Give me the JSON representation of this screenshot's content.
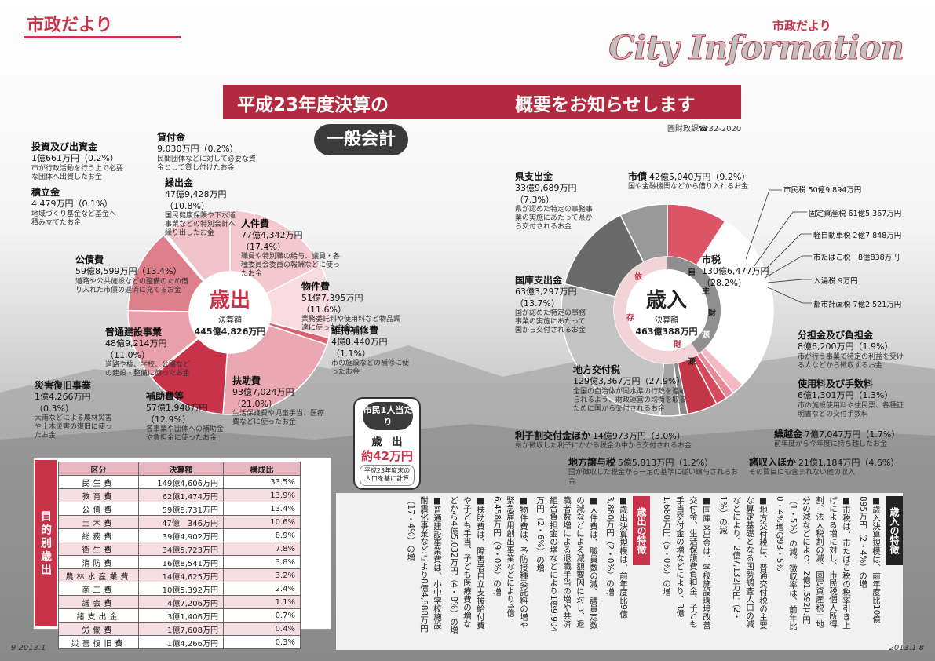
{
  "header": {
    "left_title": "市政だより",
    "right_sub": "市政だより",
    "right_brand": "City Information"
  },
  "title": {
    "part1": "平成23年度決算の",
    "part2": "概要をお知らせします"
  },
  "section": "一般会計",
  "dept": "圓財政課☎32-2020",
  "expenditure": {
    "center_big": "歳出",
    "center_sub": "決算額",
    "center_total": "445億4,826万円",
    "items": [
      {
        "name": "人件費",
        "value": "77億4,342万円（17.4%）",
        "desc": "職員や特別職の給与、議員・各種委員会委員の報酬などに使ったお金"
      },
      {
        "name": "物件費",
        "value": "51億7,395万円（11.6%）",
        "desc": "業務委託料や使用料など物品調達に使ったお金"
      },
      {
        "name": "維持補修費",
        "value": "4億8,440万円",
        "pct": "（1.1%）",
        "desc": "市の施設などの補修に使ったお金"
      },
      {
        "name": "扶助費",
        "value": "93億7,024万円",
        "pct": "（21.0%）",
        "desc": "生活保護費や児童手当、医療費などに使ったお金"
      },
      {
        "name": "補助費等",
        "value": "57億1,948万円",
        "pct": "（12.9%）",
        "desc": "各事業や団体への補助金や負担金に使ったお金"
      },
      {
        "name": "災害復旧事業",
        "value": "1億4,266万円",
        "pct": "（0.3%）",
        "desc": "大雨などによる農林災害や土木災害の復旧に使ったお金"
      },
      {
        "name": "普通建設事業",
        "value": "48億9,214万円",
        "pct": "（11.0%）",
        "desc": "道路や橋、学校、公園などの建設・整備に使ったお金"
      },
      {
        "name": "公債費",
        "value": "59億8,599万円（13.4%）",
        "desc": "道路や公共施設などの整備のため借り入れた市債の返済に充てるお金"
      },
      {
        "name": "積立金",
        "value": "4,479万円（0.1%）",
        "desc": "地域づくり基金など基金へ積み立てたお金"
      },
      {
        "name": "投資及び出資金",
        "value": "1億661万円（0.2%）",
        "desc": "市が行政活動を行う上で必要な団体へ出資したお金"
      },
      {
        "name": "貸付金",
        "value": "9,030万円（0.2%）",
        "desc": "民間団体などに対して必要な資金として貸し付けたお金"
      },
      {
        "name": "繰出金",
        "value": "47億9,428万円（10.8%）",
        "desc": "国民健康保険や下水道事業などの特別会計へ繰り出したお金"
      }
    ]
  },
  "revenue": {
    "center_big": "歳入",
    "center_sub": "決算額",
    "center_total": "463億388万円",
    "ring": {
      "jishu": [
        "自",
        "主",
        "財",
        "源"
      ],
      "izon": [
        "依",
        "存",
        "財",
        "源"
      ]
    },
    "items": [
      {
        "name": "市債",
        "value": "42億5,040万円（9.2%）",
        "desc": "国や金融機関などから借り入れるお金"
      },
      {
        "name": "県支出金",
        "value": "33億9,689万円（7.3%）",
        "desc": "県が認めた特定の事務事業の実施にあたって県から交付されるお金"
      },
      {
        "name": "国庫支出金",
        "value": "63億3,297万円",
        "pct": "（13.7%）",
        "desc": "国が認めた特定の事務事業の実施にあたって国から交付されるお金"
      },
      {
        "name": "市税",
        "value": "130億6,477万円",
        "pct": "（28.2%）"
      },
      {
        "name": "地方交付税",
        "value": "129億3,367万円（27.9%）",
        "desc": "全国の自治体が同水準の行政を進められるよう、財政運営の均衡を取るために国から交付されるお金"
      },
      {
        "name": "分担金及び負担金",
        "value": "8億6,200万円（1.9%）",
        "desc": "市が行う事業で特定の利益を受ける人などから徴収するお金"
      },
      {
        "name": "使用料及び手数料",
        "value": "6億1,301万円（1.3%）",
        "desc": "市の施設使用料や住民票、各種証明書などの交付手数料"
      },
      {
        "name": "繰越金",
        "value": "7億7,047万円（1.7%）",
        "desc": "前年度から今年度に持ち越したお金"
      },
      {
        "name": "諸収入ほか",
        "value": "21億1,184万円（4.6%）",
        "desc": "その費目にも含まれない他の収入"
      },
      {
        "name": "地方譲与税",
        "value": "5億5,813万円（1.2%）",
        "desc": "国が徴収した税金から一定の基準に従い譲与されるお金"
      },
      {
        "name": "利子割交付金ほか",
        "value": "14億973万円（3.0%）",
        "desc": "県が徴収した利子にかかる税金の中から交付されるお金"
      }
    ],
    "tax_breakdown": [
      "市民税 50億9,894万円",
      "固定資産税 61億5,367万円",
      "軽自動車税 2億7,848万円",
      "市たばこ税　8億838万円",
      "入湯税 9万円",
      "都市計画税 7億2,521万円"
    ]
  },
  "per_capita": {
    "header": "市民1人当たり",
    "label": "歳　出",
    "value": "約42万円",
    "note": "平成23年度末の人口を基に計算"
  },
  "table": {
    "sidebar": "目的別歳出",
    "headers": [
      "区分",
      "決算額",
      "構成比"
    ],
    "rows": [
      [
        "民生費",
        "149億4,606万円",
        "33.5%"
      ],
      [
        "教育費",
        "62億1,474万円",
        "13.9%"
      ],
      [
        "公債費",
        "59億8,731万円",
        "13.4%"
      ],
      [
        "土木費",
        "47億　346万円",
        "10.6%"
      ],
      [
        "総務費",
        "39億4,902万円",
        "8.9%"
      ],
      [
        "衛生費",
        "34億5,723万円",
        "7.8%"
      ],
      [
        "消防費",
        "16億8,541万円",
        "3.8%"
      ],
      [
        "農林水産業費",
        "14億4,625万円",
        "3.2%"
      ],
      [
        "商工費",
        "10億5,392万円",
        "2.4%"
      ],
      [
        "議会費",
        "4億7,206万円",
        "1.1%"
      ],
      [
        "諸支出金",
        "3億1,406万円",
        "0.7%"
      ],
      [
        "労働費",
        "1億7,608万円",
        "0.4%"
      ],
      [
        "災害復旧費",
        "1億4,266万円",
        "0.3%"
      ]
    ]
  },
  "features": {
    "rev_title": "歳入の特徴",
    "rev_text": [
      "■歳入決算規模は、前年度比10億895万円（2・4%）の増",
      "■市税は、市たばこ税の税率引き上げによる増に対し、市民税個人所得割、法人税割の減、固定資産税土地分の減などにより、2億1,592万円（1・5%）の減。徴収率は、前年比0・4%増の93・5%",
      "■地方交付税は、普通交付税の主要な算定基礎となる国勢調査人口の減などにより、2億7,132万円（2・1%）の減",
      "■国庫支出金は、学校施設環境改善交付金、生活保護費負担金、子ども手当交付金の増などにより、3億1,680万円（5・0%）の増",
      "■市債は、臨時財政対策債の減に対し、小中学校耐震化事業分の増により、2,142万円の微増"
    ],
    "exp_title": "歳出の特徴",
    "exp_text": [
      "■歳出決算規模は、前年度比9億3,880万円（2・0%）の増",
      "■人件費は、職員数の減、議員定数の減などによる減額要因に対し、退職者数増による退職手当の増や共済組合負担金の増などにより1億9,904万円（2・6%）の増",
      "■物件費は、予防接種委託料の増や緊急雇用創出事業などにより4億6,458万円（9・0%）の増",
      "■扶助費は、障害者自立支援給付費や子ども手当、子ども医療費の増などから4億5,032万円（4・8%）の増",
      "■普通建設事業費は、小中学校施設耐震化事業などにより8億4,888万円（17・4%）の増"
    ]
  },
  "footer": {
    "left": "9 2013.1",
    "right": "2013.1 8"
  },
  "colors": {
    "accent": "#c8334a",
    "dark": "#3b3b3b"
  }
}
